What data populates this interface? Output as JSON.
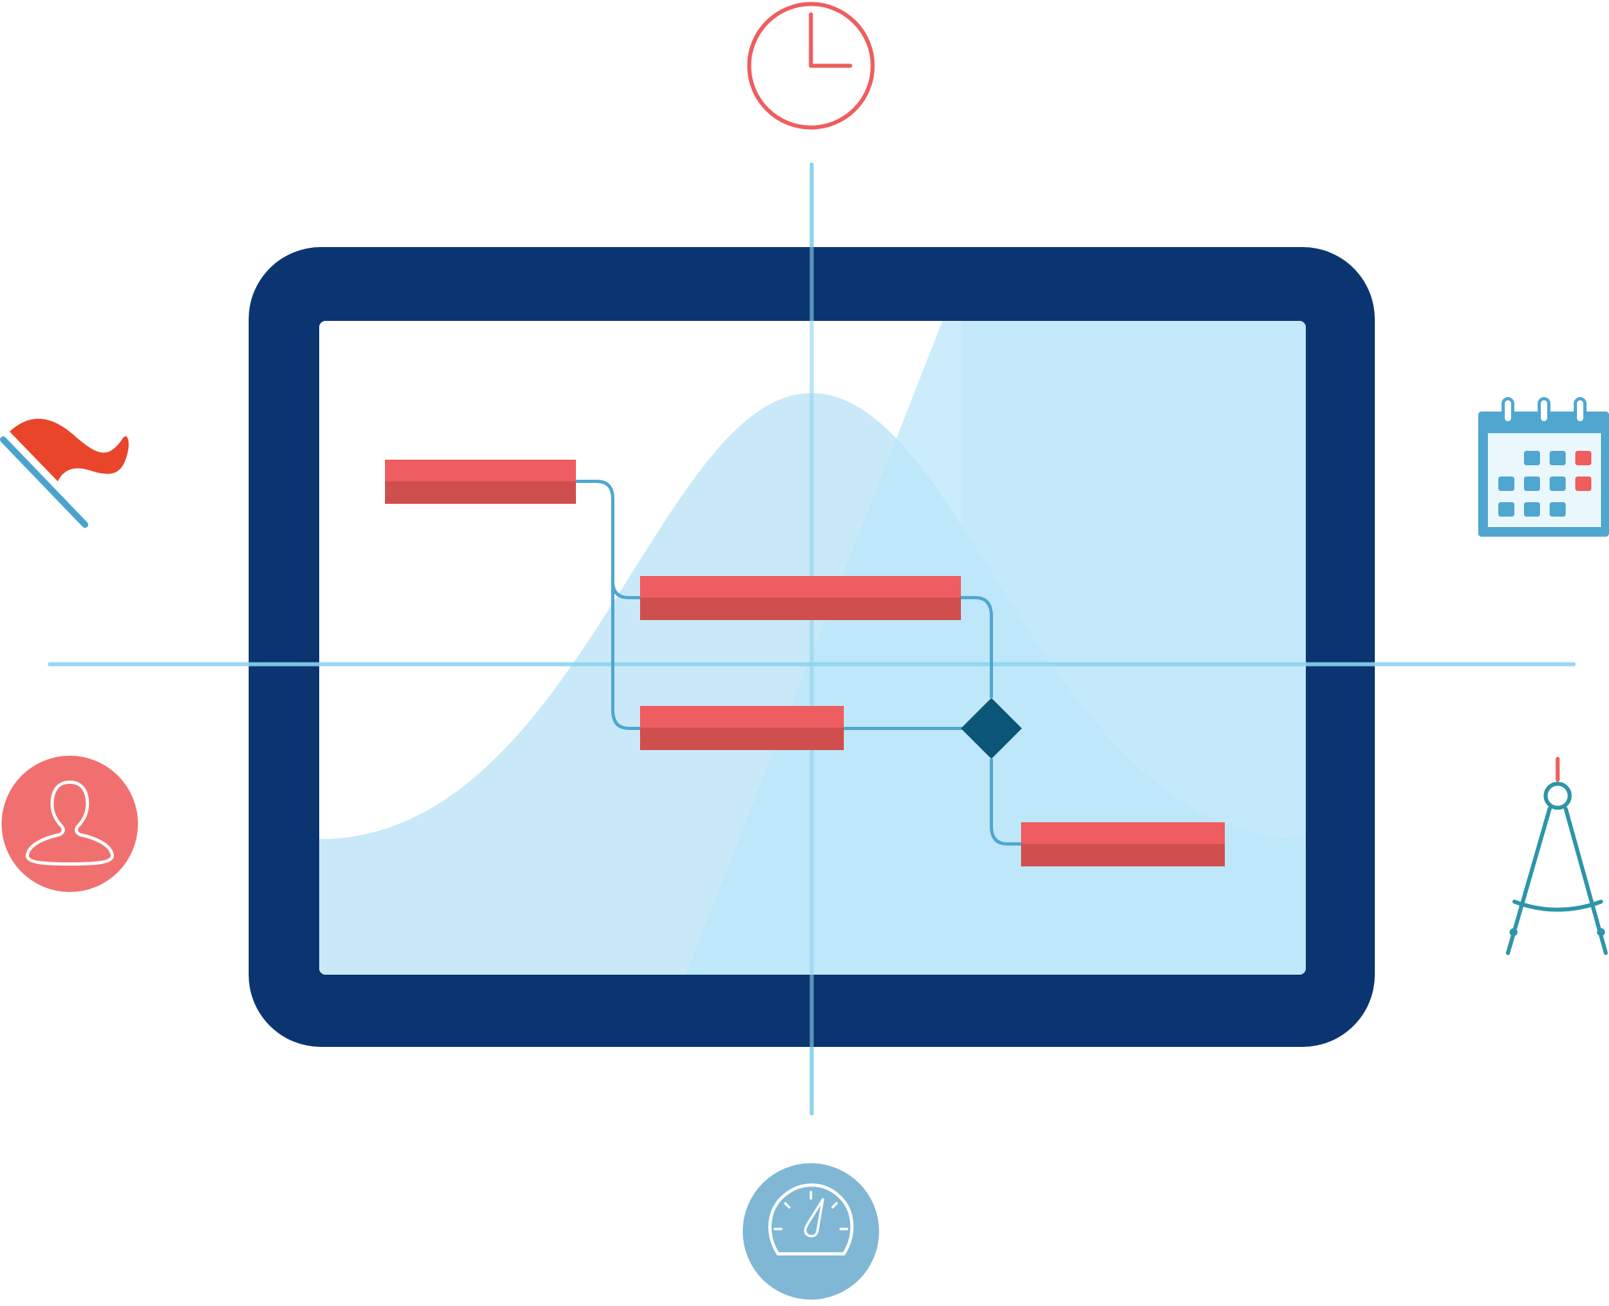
{
  "colors": {
    "frame": "#0A3570",
    "screen": "#DDF3FC",
    "bell_curve": "#C9E9F8",
    "glare": "#B9E5FA",
    "axis_line": "#8ED3EE",
    "task_bar": "#EE5D5F",
    "task_bar_shade": "#CF4F4F",
    "connector": "#4FA7CF",
    "milestone": "#0B5578",
    "clock_icon": "#EE5D5F",
    "flag_icon": "#E9452B",
    "flag_pole": "#4AA3CE",
    "user_icon_bg": "#F07070",
    "calendar_icon": "#4FA7CF",
    "calendar_accent": "#EE5D5F",
    "compass_icon": "#2C95A8",
    "compass_accent": "#EE5D5F",
    "gauge_icon_bg": "#7FB7D4"
  },
  "icons": [
    "clock-icon",
    "flag-icon",
    "calendar-icon",
    "user-icon",
    "compass-icon",
    "speedometer-icon"
  ],
  "gantt": {
    "task_count": 4,
    "milestone_count": 1
  }
}
